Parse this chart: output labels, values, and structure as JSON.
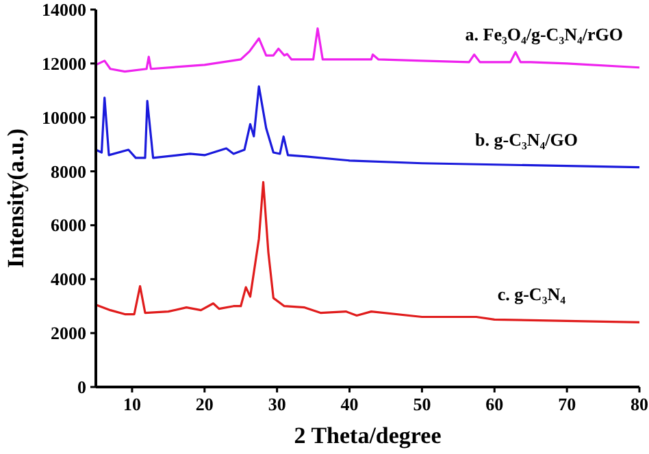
{
  "chart_data": {
    "type": "line",
    "xlabel": "2 Theta/degree",
    "ylabel": "Intensity(a.u.)",
    "xlim": [
      5,
      80
    ],
    "xticks": [
      10,
      20,
      30,
      40,
      50,
      60,
      70,
      80
    ],
    "ylim": [
      0,
      14000
    ],
    "yticks": [
      0,
      2000,
      4000,
      6000,
      8000,
      10000,
      12000,
      14000
    ],
    "grid": false,
    "line_style": "solid",
    "series": [
      {
        "name": "a. Fe₃O₄/g-C₃N₄/rGO",
        "color": "#ee22ee",
        "x": [
          5,
          6.2,
          7,
          9,
          12,
          12.3,
          12.6,
          20,
          25,
          26.2,
          27.5,
          28.5,
          29.5,
          30.2,
          31,
          31.4,
          32,
          35,
          35.6,
          36.3,
          43,
          43.2,
          44,
          50,
          56.5,
          57.2,
          58,
          62.2,
          62.9,
          63.6,
          65,
          70,
          80
        ],
        "values": [
          11950,
          12100,
          11800,
          11700,
          11800,
          12250,
          11800,
          11950,
          12150,
          12450,
          12930,
          12300,
          12300,
          12550,
          12300,
          12350,
          12150,
          12150,
          13300,
          12150,
          12150,
          12330,
          12150,
          12100,
          12050,
          12330,
          12050,
          12050,
          12420,
          12050,
          12050,
          12000,
          11850
        ]
      },
      {
        "name": "b. g-C₃N₄/GO",
        "color": "#1a1adc",
        "x": [
          5,
          5.8,
          6.2,
          6.8,
          9.5,
          10.5,
          11.8,
          12.1,
          12.9,
          18,
          20,
          23,
          24,
          25.5,
          26.3,
          26.8,
          27.5,
          28.5,
          29.5,
          30.4,
          30.9,
          31.5,
          34,
          40,
          50,
          80
        ],
        "values": [
          8800,
          8700,
          10730,
          8600,
          8800,
          8500,
          8500,
          10610,
          8500,
          8650,
          8600,
          8850,
          8650,
          8800,
          9750,
          9300,
          11150,
          9600,
          8700,
          8650,
          9290,
          8600,
          8550,
          8400,
          8300,
          8150
        ]
      },
      {
        "name": "c. g-C₃N₄",
        "color": "#e01c1c",
        "x": [
          5,
          7,
          9,
          10.3,
          11.1,
          11.8,
          15,
          17.5,
          19.5,
          21.2,
          22,
          24,
          25,
          25.7,
          26.3,
          27.5,
          28.1,
          28.8,
          29.5,
          31,
          33.8,
          36,
          39.5,
          41,
          43,
          50,
          57.5,
          60,
          70,
          80
        ],
        "values": [
          3050,
          2850,
          2700,
          2700,
          3740,
          2750,
          2800,
          2950,
          2850,
          3100,
          2900,
          3000,
          3000,
          3700,
          3350,
          5500,
          7600,
          5000,
          3300,
          3000,
          2950,
          2750,
          2800,
          2650,
          2800,
          2600,
          2600,
          2500,
          2450,
          2400
        ]
      }
    ]
  }
}
